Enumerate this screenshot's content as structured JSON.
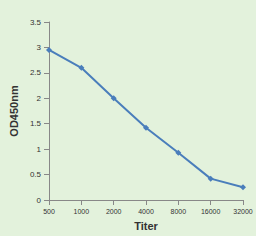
{
  "chart_data": {
    "type": "line",
    "x_label": "Titer",
    "y_label": "OD450nm",
    "categories": [
      "500",
      "1000",
      "2000",
      "4000",
      "8000",
      "16000",
      "32000"
    ],
    "values": [
      2.95,
      2.6,
      2.0,
      1.42,
      0.93,
      0.42,
      0.25
    ],
    "color": "#4a7ebb",
    "marker": "diamond",
    "ylim": [
      0,
      3.5
    ],
    "yticks": [
      0,
      0.5,
      1,
      1.5,
      2,
      2.5,
      3,
      3.5
    ],
    "grid": false
  }
}
